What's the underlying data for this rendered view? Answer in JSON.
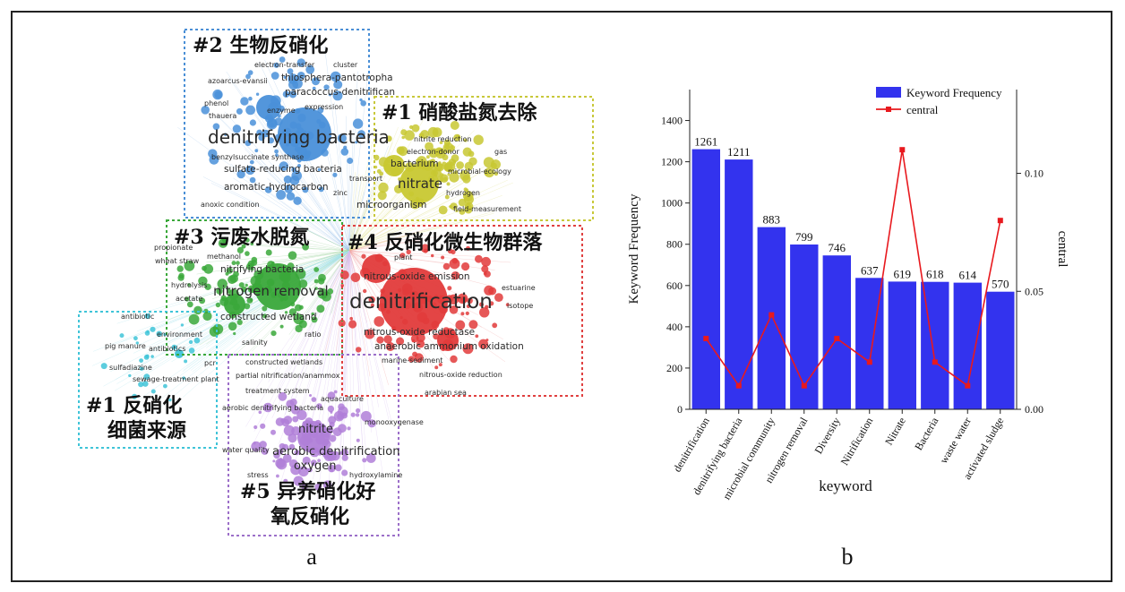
{
  "panels": {
    "a_label": "a",
    "b_label": "b"
  },
  "network": {
    "colors": {
      "blue": "#4a90d9",
      "yellow": "#c8c832",
      "green": "#3aa83a",
      "red": "#e23b3b",
      "purple": "#b07fd8",
      "cyan": "#3fc4d8"
    },
    "clusters": [
      {
        "id": "blue",
        "title": "#2 生物反硝化",
        "border": "#4a8fd6"
      },
      {
        "id": "yellow",
        "title": "#1 硝酸盐氮去除",
        "border": "#c8c83a"
      },
      {
        "id": "green",
        "title": "#3 污废水脱氮",
        "border": "#3aa83a"
      },
      {
        "id": "red",
        "title": "#4 反硝化微生物群落",
        "border": "#e04040"
      },
      {
        "id": "cyan",
        "title_lines": [
          "#1 反硝化",
          "细菌来源"
        ],
        "border": "#3fc4d8"
      },
      {
        "id": "purple",
        "title_lines": [
          "#5 异养硝化好",
          "氧反硝化"
        ],
        "border": "#9c6fc9"
      }
    ],
    "keywords": [
      {
        "text": "denitrifying bacteria",
        "cluster": "blue",
        "size": "xl"
      },
      {
        "text": "paracoccus-denitrifican",
        "cluster": "blue",
        "size": "s"
      },
      {
        "text": "thiosphera-pantotropha",
        "cluster": "blue",
        "size": "s"
      },
      {
        "text": "electron-transfer",
        "cluster": "blue",
        "size": "xs"
      },
      {
        "text": "cluster",
        "cluster": "blue",
        "size": "xs"
      },
      {
        "text": "azoarcus-evansii",
        "cluster": "blue",
        "size": "xs"
      },
      {
        "text": "phenol",
        "cluster": "blue",
        "size": "xs"
      },
      {
        "text": "thauera",
        "cluster": "blue",
        "size": "xs"
      },
      {
        "text": "enzyme",
        "cluster": "blue",
        "size": "xs"
      },
      {
        "text": "expression",
        "cluster": "blue",
        "size": "xs"
      },
      {
        "text": "benzylsuccinate synthase",
        "cluster": "blue",
        "size": "xs"
      },
      {
        "text": "sulfate-reducing bacteria",
        "cluster": "blue",
        "size": "s"
      },
      {
        "text": "aromatic-hydrocarbon",
        "cluster": "blue",
        "size": "s"
      },
      {
        "text": "anoxic condition",
        "cluster": "blue",
        "size": "xs"
      },
      {
        "text": "nitrate",
        "cluster": "yellow",
        "size": "l"
      },
      {
        "text": "bacterium",
        "cluster": "yellow",
        "size": "s"
      },
      {
        "text": "microorganism",
        "cluster": "yellow",
        "size": "s"
      },
      {
        "text": "nitrite reduction",
        "cluster": "yellow",
        "size": "xs"
      },
      {
        "text": "electron-donor",
        "cluster": "yellow",
        "size": "xs"
      },
      {
        "text": "microbial-ecology",
        "cluster": "yellow",
        "size": "xs"
      },
      {
        "text": "hydrogen",
        "cluster": "yellow",
        "size": "xs"
      },
      {
        "text": "transport",
        "cluster": "yellow",
        "size": "xs"
      },
      {
        "text": "field-measurement",
        "cluster": "yellow",
        "size": "xs"
      },
      {
        "text": "gas",
        "cluster": "yellow",
        "size": "xs"
      },
      {
        "text": "zinc",
        "cluster": "yellow",
        "size": "xs"
      },
      {
        "text": "nitrogen removal",
        "cluster": "green",
        "size": "l"
      },
      {
        "text": "nitrifying bacteria",
        "cluster": "green",
        "size": "s"
      },
      {
        "text": "constructed wetland",
        "cluster": "green",
        "size": "s"
      },
      {
        "text": "methanol",
        "cluster": "green",
        "size": "xs"
      },
      {
        "text": "propionate",
        "cluster": "green",
        "size": "xs"
      },
      {
        "text": "wheat straw",
        "cluster": "green",
        "size": "xs"
      },
      {
        "text": "hydrolysis",
        "cluster": "green",
        "size": "xs"
      },
      {
        "text": "acetate",
        "cluster": "green",
        "size": "xs"
      },
      {
        "text": "salinity",
        "cluster": "green",
        "size": "xs"
      },
      {
        "text": "ratio",
        "cluster": "green",
        "size": "xs"
      },
      {
        "text": "denitrification",
        "cluster": "red",
        "size": "xxl"
      },
      {
        "text": "nitrous-oxide emission",
        "cluster": "red",
        "size": "s"
      },
      {
        "text": "nitrous-oxide reductase",
        "cluster": "red",
        "size": "s"
      },
      {
        "text": "anaerobic ammonium oxidation",
        "cluster": "red",
        "size": "s"
      },
      {
        "text": "marine-sediment",
        "cluster": "red",
        "size": "xs"
      },
      {
        "text": "nitrous-oxide reduction",
        "cluster": "red",
        "size": "xs"
      },
      {
        "text": "estuarine",
        "cluster": "red",
        "size": "xs"
      },
      {
        "text": "isotope",
        "cluster": "red",
        "size": "xs"
      },
      {
        "text": "arabian sea",
        "cluster": "red",
        "size": "xs"
      },
      {
        "text": "plant",
        "cluster": "red",
        "size": "xs"
      },
      {
        "text": "antibiotic",
        "cluster": "cyan",
        "size": "xs"
      },
      {
        "text": "environment",
        "cluster": "cyan",
        "size": "xs"
      },
      {
        "text": "antibiotics",
        "cluster": "cyan",
        "size": "xs"
      },
      {
        "text": "pig manure",
        "cluster": "cyan",
        "size": "xs"
      },
      {
        "text": "sulfadiazine",
        "cluster": "cyan",
        "size": "xs"
      },
      {
        "text": "sewage-treatment plant",
        "cluster": "cyan",
        "size": "xs"
      },
      {
        "text": "pcr",
        "cluster": "cyan",
        "size": "xs"
      },
      {
        "text": "nitrite",
        "cluster": "purple",
        "size": "m"
      },
      {
        "text": "aerobic denitrification",
        "cluster": "purple",
        "size": "m"
      },
      {
        "text": "oxygen",
        "cluster": "purple",
        "size": "m"
      },
      {
        "text": "treatment system",
        "cluster": "purple",
        "size": "xs"
      },
      {
        "text": "partial nitrification/anammox",
        "cluster": "purple",
        "size": "xs"
      },
      {
        "text": "constructed wetlands",
        "cluster": "purple",
        "size": "xs"
      },
      {
        "text": "aquaculture",
        "cluster": "purple",
        "size": "xs"
      },
      {
        "text": "monooxygenase",
        "cluster": "purple",
        "size": "xs"
      },
      {
        "text": "hydroxylamine",
        "cluster": "purple",
        "size": "xs"
      },
      {
        "text": "water quality",
        "cluster": "purple",
        "size": "xs"
      },
      {
        "text": "aerobic denitrifying bacteria",
        "cluster": "purple",
        "size": "xs"
      },
      {
        "text": "stress",
        "cluster": "purple",
        "size": "xs"
      }
    ]
  },
  "chart_data": {
    "type": "bar",
    "categories": [
      "denitrification",
      "denitrifying bacteria",
      "microbial community",
      "nitrogen removal",
      "Diversity",
      "Nitrification",
      "Nitrate",
      "Bacteria",
      "waste water",
      "activated sludge"
    ],
    "series": [
      {
        "name": "Keyword Frequency",
        "type": "bar",
        "axis": "left",
        "color": "#3333ee",
        "values": [
          1261,
          1211,
          883,
          799,
          746,
          637,
          619,
          618,
          614,
          570
        ]
      },
      {
        "name": "central",
        "type": "line",
        "axis": "right",
        "color": "#e8191e",
        "values": [
          0.03,
          0.01,
          0.04,
          0.01,
          0.03,
          0.02,
          0.11,
          0.02,
          0.01,
          0.08
        ]
      }
    ],
    "data_labels": [
      "1261",
      "1211",
      "883",
      "799",
      "746",
      "637",
      "619",
      "618",
      "614",
      "570"
    ],
    "xlabel": "keyword",
    "ylabel": "Keyword Frequency",
    "y2label": "central",
    "ylim": [
      0,
      1550
    ],
    "y2lim": [
      0,
      0.1355
    ],
    "yticks": [
      0,
      200,
      400,
      600,
      800,
      1000,
      1200,
      1400
    ],
    "y2ticks": [
      0.0,
      0.05,
      0.1
    ],
    "y2tick_labels": [
      "0.00",
      "0.05",
      "0.10"
    ],
    "legend": {
      "placement": "top-right",
      "entries": [
        "Keyword Frequency",
        "central"
      ]
    },
    "grid": false
  }
}
